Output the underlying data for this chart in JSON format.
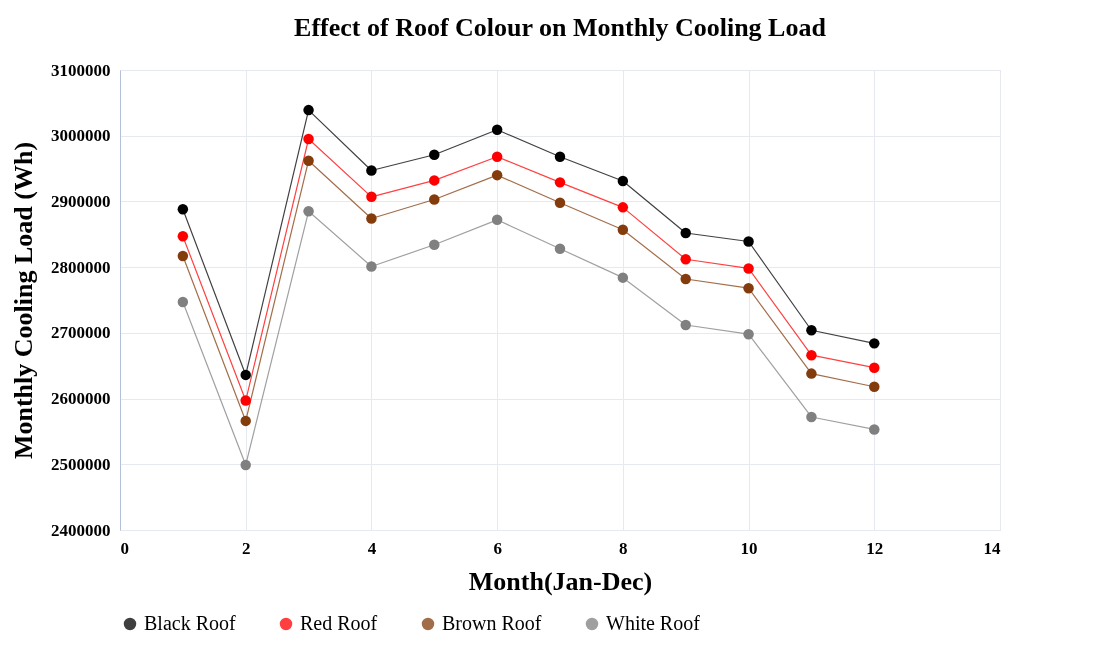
{
  "chart_data": {
    "type": "line",
    "title": "Effect of Roof Colour on Monthly Cooling Load",
    "xlabel": "Month(Jan-Dec)",
    "ylabel": "Monthly Cooling Load (Wh)",
    "x": [
      1,
      2,
      3,
      4,
      5,
      6,
      7,
      8,
      9,
      10,
      11,
      12
    ],
    "series": [
      {
        "name": "Black Roof",
        "color": "#000000",
        "values": [
          2888000,
          2636000,
          3039000,
          2947000,
          2971000,
          3009000,
          2968000,
          2931000,
          2852000,
          2839000,
          2704000,
          2684000
        ]
      },
      {
        "name": "Red Roof",
        "color": "#ff0000",
        "values": [
          2847000,
          2597000,
          2995000,
          2907000,
          2932000,
          2968000,
          2929000,
          2891000,
          2812000,
          2798000,
          2666000,
          2647000
        ]
      },
      {
        "name": "Brown Roof",
        "color": "#843c0c",
        "values": [
          2817000,
          2566000,
          2962000,
          2874000,
          2903000,
          2940000,
          2898000,
          2857000,
          2782000,
          2768000,
          2638000,
          2618000
        ]
      },
      {
        "name": "White Roof",
        "color": "#808080",
        "values": [
          2747000,
          2499000,
          2885000,
          2801000,
          2834000,
          2872000,
          2828000,
          2784000,
          2712000,
          2698000,
          2572000,
          2553000
        ]
      }
    ],
    "xlim": [
      0,
      14
    ],
    "xticks": [
      0,
      2,
      4,
      6,
      8,
      10,
      12,
      14
    ],
    "ylim": [
      2400000,
      3100000
    ],
    "yticks": [
      2400000,
      2500000,
      2600000,
      2700000,
      2800000,
      2900000,
      3000000,
      3100000
    ],
    "grid": true,
    "legend": "bottom",
    "marker": "circle",
    "line_style": "solid"
  }
}
